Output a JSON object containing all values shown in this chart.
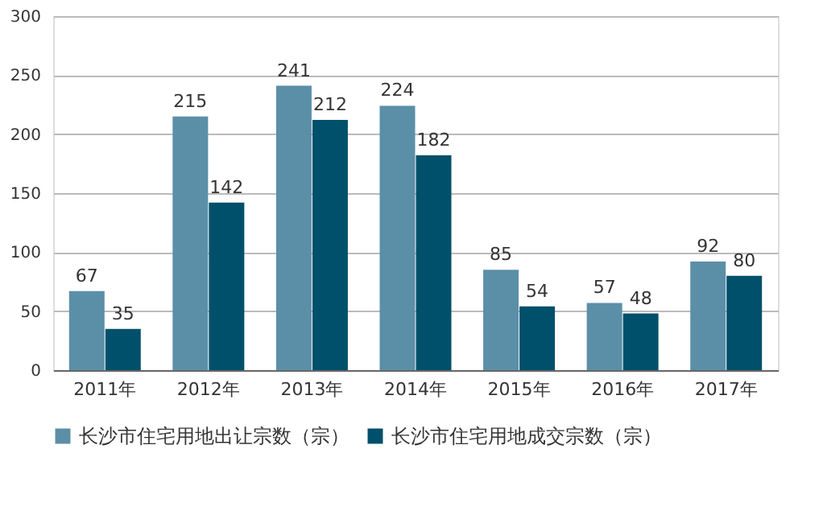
{
  "chart_data": {
    "type": "bar",
    "categories": [
      "2011年",
      "2012年",
      "2013年",
      "2014年",
      "2015年",
      "2016年",
      "2017年"
    ],
    "series": [
      {
        "name": "长沙市住宅用地出让宗数（宗）",
        "color": "#5b8fa8",
        "values": [
          67,
          215,
          241,
          224,
          85,
          57,
          92
        ]
      },
      {
        "name": "长沙市住宅用地成交宗数（宗）",
        "color": "#00506b",
        "values": [
          35,
          142,
          212,
          182,
          54,
          48,
          80
        ]
      }
    ],
    "ylim": [
      0,
      300
    ],
    "yticks": [
      0,
      50,
      100,
      150,
      200,
      250,
      300
    ],
    "grid": "y",
    "legend": "bottom",
    "data_labels": true
  }
}
